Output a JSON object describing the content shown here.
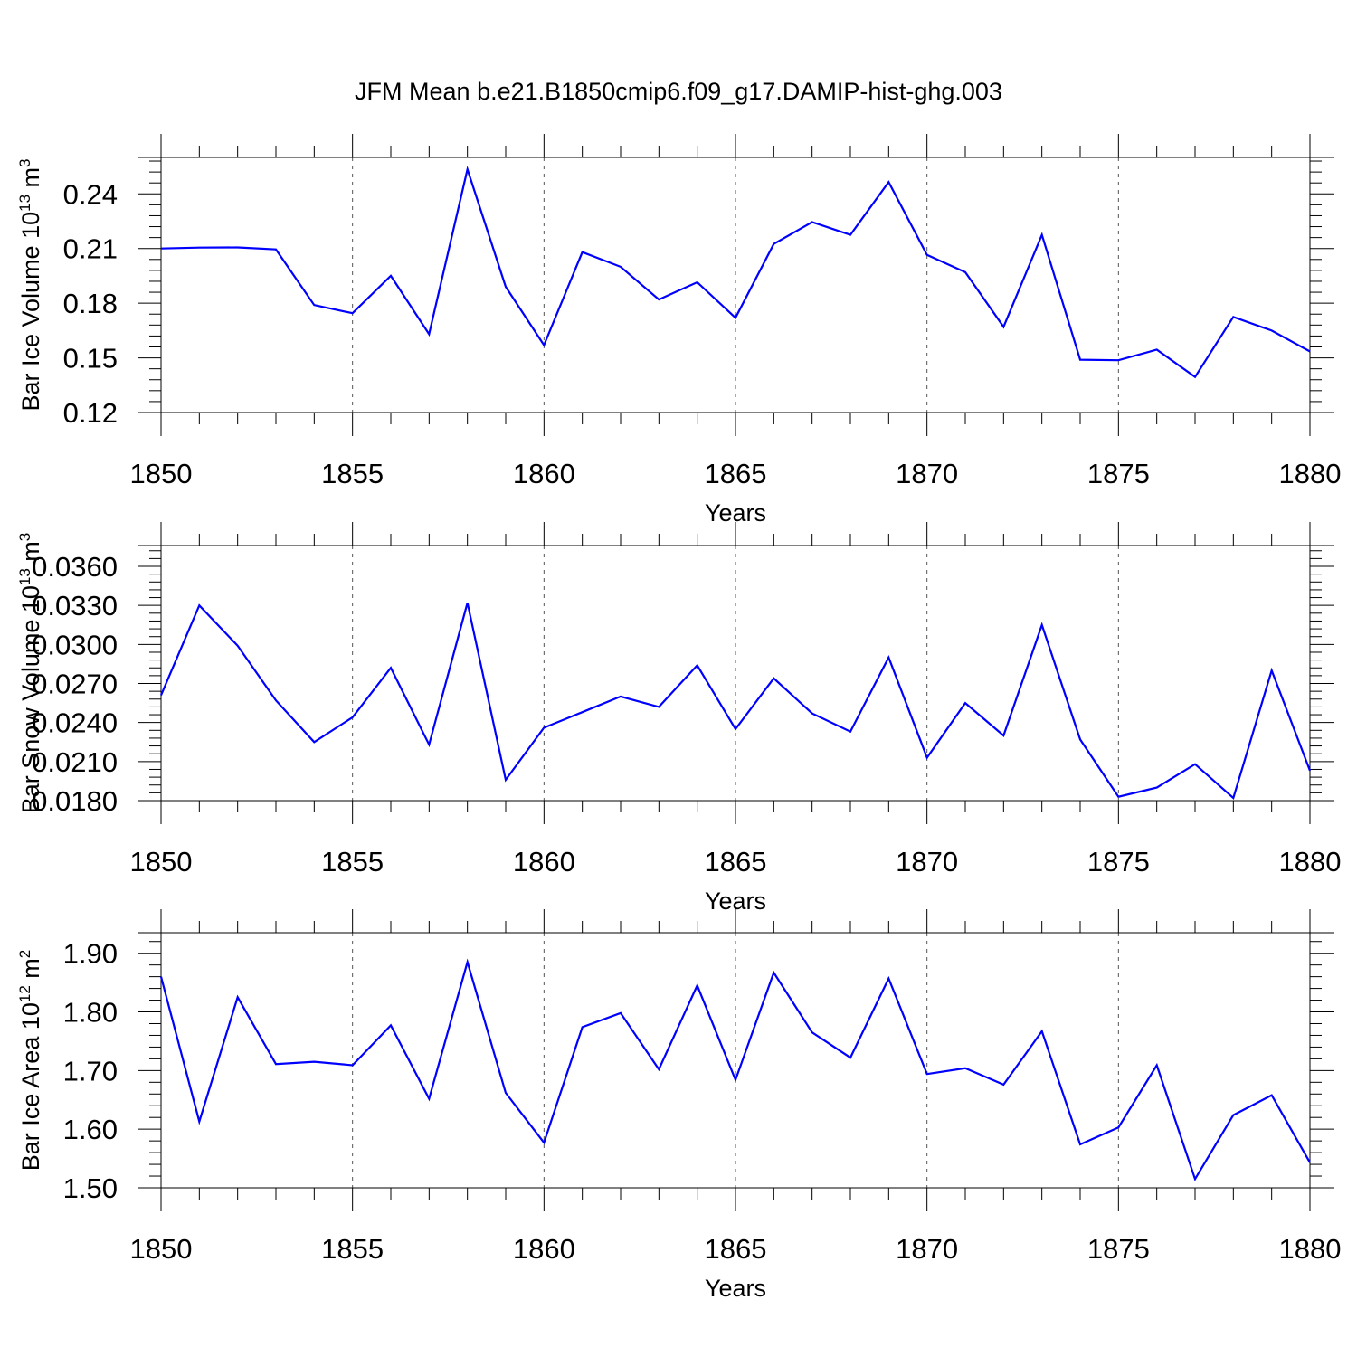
{
  "title": "JFM Mean b.e21.B1850cmip6.f09_g17.DAMIP-hist-ghg.003",
  "colors": {
    "line": "#0000ff",
    "axis": "#000000",
    "grid": "#555555"
  },
  "chart_data": [
    {
      "type": "line",
      "ylabel": {
        "prefix": "Bar Ice Volume 10",
        "exp": "13",
        "unit": " m",
        "unit_exp": "3"
      },
      "xlabel": "Years",
      "xlim": [
        1850,
        1880
      ],
      "ylim": [
        0.12,
        0.26
      ],
      "yticks": [
        "0.12",
        "0.15",
        "0.18",
        "0.21",
        "0.24"
      ],
      "xticks": [
        "1850",
        "1855",
        "1860",
        "1865",
        "1870",
        "1875",
        "1880"
      ],
      "x": [
        1850,
        1851,
        1852,
        1853,
        1854,
        1855,
        1856,
        1857,
        1858,
        1859,
        1860,
        1861,
        1862,
        1863,
        1864,
        1865,
        1866,
        1867,
        1868,
        1869,
        1870,
        1871,
        1872,
        1873,
        1874,
        1875,
        1876,
        1877,
        1878,
        1879,
        1880
      ],
      "values": [
        0.21,
        0.2105,
        0.2106,
        0.2095,
        0.179,
        0.1745,
        0.195,
        0.163,
        0.2535,
        0.189,
        0.157,
        0.208,
        0.2,
        0.182,
        0.1915,
        0.172,
        0.2125,
        0.2245,
        0.2175,
        0.2465,
        0.2065,
        0.197,
        0.167,
        0.2175,
        0.149,
        0.1487,
        0.1545,
        0.1395,
        0.1725,
        0.165,
        0.1535
      ]
    },
    {
      "type": "line",
      "ylabel": {
        "prefix": "Bar Snow Volume 10",
        "exp": "13",
        "unit": " m",
        "unit_exp": "3"
      },
      "xlabel": "Years",
      "xlim": [
        1850,
        1880
      ],
      "ylim": [
        0.018,
        0.0376
      ],
      "yticks": [
        "0.0180",
        "0.0210",
        "0.0240",
        "0.0270",
        "0.0300",
        "0.0330",
        "0.0360"
      ],
      "xticks": [
        "1850",
        "1855",
        "1860",
        "1865",
        "1870",
        "1875",
        "1880"
      ],
      "x": [
        1850,
        1851,
        1852,
        1853,
        1854,
        1855,
        1856,
        1857,
        1858,
        1859,
        1860,
        1861,
        1862,
        1863,
        1864,
        1865,
        1866,
        1867,
        1868,
        1869,
        1870,
        1871,
        1872,
        1873,
        1874,
        1875,
        1876,
        1877,
        1878,
        1879,
        1880
      ],
      "values": [
        0.0261,
        0.033,
        0.0299,
        0.0257,
        0.0225,
        0.0244,
        0.0282,
        0.0223,
        0.0332,
        0.0196,
        0.0236,
        0.0248,
        0.026,
        0.0252,
        0.0284,
        0.0235,
        0.0274,
        0.0247,
        0.0233,
        0.029,
        0.0213,
        0.0255,
        0.023,
        0.0315,
        0.0227,
        0.0183,
        0.019,
        0.0208,
        0.0182,
        0.028,
        0.0203
      ]
    },
    {
      "type": "line",
      "ylabel": {
        "prefix": "Bar Ice Area 10",
        "exp": "12",
        "unit": " m",
        "unit_exp": "2"
      },
      "xlabel": "Years",
      "xlim": [
        1850,
        1880
      ],
      "ylim": [
        1.5,
        1.935
      ],
      "yticks": [
        "1.50",
        "1.60",
        "1.70",
        "1.80",
        "1.90"
      ],
      "xticks": [
        "1850",
        "1855",
        "1860",
        "1865",
        "1870",
        "1875",
        "1880"
      ],
      "x": [
        1850,
        1851,
        1852,
        1853,
        1854,
        1855,
        1856,
        1857,
        1858,
        1859,
        1860,
        1861,
        1862,
        1863,
        1864,
        1865,
        1866,
        1867,
        1868,
        1869,
        1870,
        1871,
        1872,
        1873,
        1874,
        1875,
        1876,
        1877,
        1878,
        1879,
        1880
      ],
      "values": [
        1.86,
        1.613,
        1.825,
        1.711,
        1.715,
        1.709,
        1.777,
        1.652,
        1.885,
        1.662,
        1.577,
        1.774,
        1.798,
        1.702,
        1.845,
        1.684,
        1.867,
        1.765,
        1.722,
        1.857,
        1.694,
        1.704,
        1.676,
        1.767,
        1.574,
        1.603,
        1.709,
        1.515,
        1.624,
        1.658,
        1.543
      ]
    }
  ]
}
